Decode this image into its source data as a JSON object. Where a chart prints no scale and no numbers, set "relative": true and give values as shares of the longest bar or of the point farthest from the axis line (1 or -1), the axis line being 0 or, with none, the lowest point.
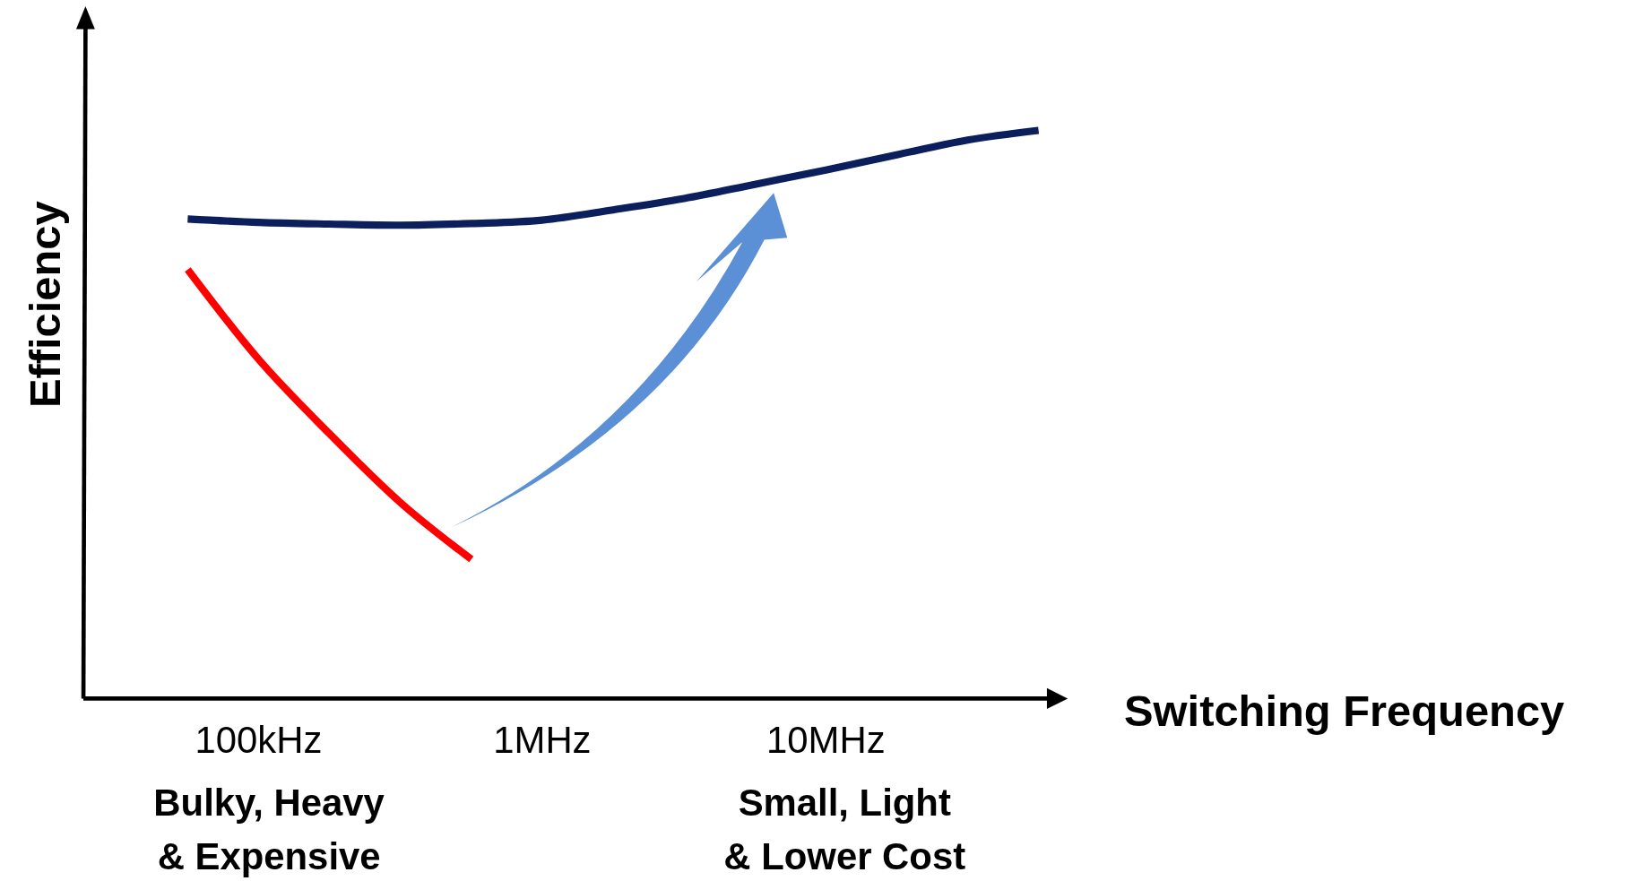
{
  "chart_data": {
    "type": "line",
    "xlabel": "Switching Frequency",
    "ylabel": "Efficiency",
    "relative": true,
    "categories": [
      null,
      "100kHz",
      null,
      null,
      null,
      "1MHz",
      null,
      null,
      null,
      "10MHz",
      null,
      null,
      null
    ],
    "series": [
      {
        "color": "#0b1f5c",
        "values": [
          0.844,
          0.838,
          0.835,
          0.833,
          0.836,
          0.842,
          0.86,
          0.88,
          0.905,
          0.93,
          0.957,
          0.983,
          1
        ]
      },
      {
        "color": "#ff0000",
        "values": [
          0.755,
          0.597,
          0.466,
          0.345,
          0.245,
          null,
          null,
          null,
          null,
          null,
          null,
          null,
          null
        ]
      }
    ],
    "annotations": [
      "Bulky, Heavy\n& Expensive",
      "Small, Light\n& Lower Cost"
    ],
    "marker": "none",
    "line_style": "solid"
  }
}
